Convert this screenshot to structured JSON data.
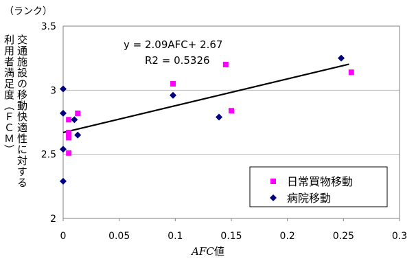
{
  "chart_data": {
    "type": "scatter",
    "unit_label": "（ランク）",
    "ylabel_lines": [
      "交通施設の移動快適性に対する",
      "利用者満足度（ＦＣＭ）"
    ],
    "xlabel_main": "AFC",
    "xlabel_suffix": "値",
    "xlim": [
      0,
      0.3
    ],
    "ylim": [
      2,
      3.5
    ],
    "xticks": [
      "0",
      "0.05",
      "0.1",
      "0.15",
      "0.2",
      "0.25",
      "0.3"
    ],
    "yticks": [
      "2",
      "2.5",
      "3",
      "3.5"
    ],
    "grid": "horizontal",
    "legend_position": "bottom-right",
    "annotation": {
      "equation": "y = 2.09AFC+ 2.67",
      "r2": "R2 = 0.5326"
    },
    "trendline": {
      "slope": 2.09,
      "intercept": 2.67,
      "x_range": [
        0,
        0.255
      ]
    },
    "series": [
      {
        "name": "日常買物移動",
        "marker": "square",
        "color": "#ff00ff",
        "points": [
          [
            0.005,
            2.77
          ],
          [
            0.005,
            2.67
          ],
          [
            0.005,
            2.65
          ],
          [
            0.005,
            2.63
          ],
          [
            0.005,
            2.51
          ],
          [
            0.013,
            2.82
          ],
          [
            0.098,
            3.05
          ],
          [
            0.145,
            3.2
          ],
          [
            0.15,
            2.84
          ],
          [
            0.257,
            3.14
          ]
        ]
      },
      {
        "name": "病院移動",
        "marker": "diamond",
        "color": "#000080",
        "points": [
          [
            0.0,
            3.01
          ],
          [
            0.0,
            2.82
          ],
          [
            0.0,
            2.54
          ],
          [
            0.0,
            2.29
          ],
          [
            0.01,
            2.77
          ],
          [
            0.013,
            2.65
          ],
          [
            0.098,
            2.96
          ],
          [
            0.139,
            2.79
          ],
          [
            0.248,
            3.25
          ]
        ]
      }
    ]
  }
}
